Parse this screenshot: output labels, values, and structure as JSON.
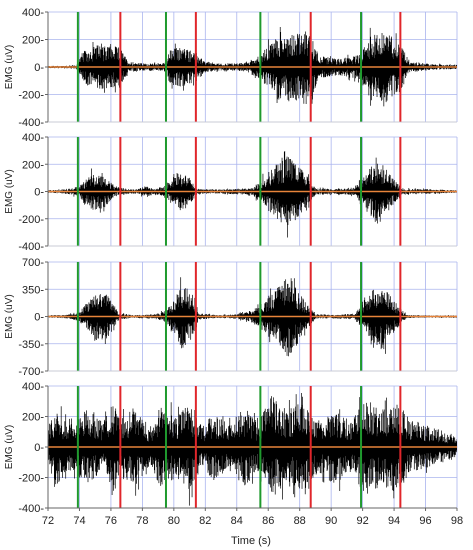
{
  "chart_data": {
    "type": "line",
    "title": "",
    "xlabel": "Time (s)",
    "xlim": [
      72,
      98
    ],
    "x_ticks": [
      72,
      74,
      76,
      78,
      80,
      82,
      84,
      86,
      88,
      90,
      92,
      94,
      96,
      98
    ],
    "grid": true,
    "colors": {
      "signal": "#000000",
      "baseline": "#e8843a",
      "onset_marker": "#1f9a2e",
      "offset_marker": "#e0262b",
      "grid": "#aab4ee",
      "axis": "#666666"
    },
    "onset_markers": [
      73.9,
      79.5,
      85.5,
      91.9
    ],
    "offset_markers": [
      76.6,
      81.4,
      88.7,
      94.4
    ],
    "panels": [
      {
        "ylabel": "EMG (uV)",
        "ylim": [
          -400,
          400
        ],
        "y_ticks": [
          400,
          200,
          0,
          -200,
          -400
        ],
        "envelope": [
          [
            72.0,
            8
          ],
          [
            73.0,
            10
          ],
          [
            73.8,
            12
          ],
          [
            74.2,
            110
          ],
          [
            75.0,
            160
          ],
          [
            75.8,
            165
          ],
          [
            76.6,
            140
          ],
          [
            77.1,
            40
          ],
          [
            78.2,
            25
          ],
          [
            79.4,
            30
          ],
          [
            79.8,
            130
          ],
          [
            80.5,
            150
          ],
          [
            81.4,
            110
          ],
          [
            81.9,
            40
          ],
          [
            83.0,
            25
          ],
          [
            84.5,
            30
          ],
          [
            85.5,
            90
          ],
          [
            86.5,
            220
          ],
          [
            87.5,
            260
          ],
          [
            88.7,
            230
          ],
          [
            89.3,
            80
          ],
          [
            90.5,
            60
          ],
          [
            91.8,
            90
          ],
          [
            92.5,
            230
          ],
          [
            93.5,
            260
          ],
          [
            94.4,
            180
          ],
          [
            95.0,
            40
          ],
          [
            96.5,
            20
          ],
          [
            98.0,
            15
          ]
        ]
      },
      {
        "ylabel": "EMG (uV)",
        "ylim": [
          -400,
          400
        ],
        "y_ticks": [
          400,
          200,
          0,
          -200,
          -400
        ],
        "envelope": [
          [
            72.0,
            10
          ],
          [
            73.0,
            15
          ],
          [
            74.0,
            40
          ],
          [
            74.8,
            140
          ],
          [
            75.6,
            120
          ],
          [
            76.3,
            30
          ],
          [
            77.5,
            15
          ],
          [
            78.2,
            40
          ],
          [
            78.8,
            20
          ],
          [
            79.5,
            40
          ],
          [
            80.2,
            150
          ],
          [
            80.9,
            110
          ],
          [
            81.5,
            20
          ],
          [
            82.5,
            15
          ],
          [
            83.8,
            20
          ],
          [
            85.0,
            25
          ],
          [
            86.0,
            140
          ],
          [
            87.2,
            280
          ],
          [
            88.3,
            140
          ],
          [
            89.0,
            25
          ],
          [
            90.3,
            20
          ],
          [
            91.5,
            30
          ],
          [
            92.3,
            140
          ],
          [
            93.0,
            260
          ],
          [
            93.8,
            120
          ],
          [
            94.5,
            20
          ],
          [
            95.5,
            20
          ],
          [
            96.5,
            15
          ],
          [
            98.0,
            10
          ]
        ]
      },
      {
        "ylabel": "EMG (uV)",
        "ylim": [
          -700,
          700
        ],
        "y_ticks": [
          700,
          350,
          0,
          -350,
          -700
        ],
        "envelope": [
          [
            72.0,
            15
          ],
          [
            73.0,
            20
          ],
          [
            74.0,
            60
          ],
          [
            75.0,
            320
          ],
          [
            75.8,
            280
          ],
          [
            76.5,
            40
          ],
          [
            77.5,
            20
          ],
          [
            78.8,
            30
          ],
          [
            79.6,
            80
          ],
          [
            80.5,
            420
          ],
          [
            81.2,
            300
          ],
          [
            81.6,
            40
          ],
          [
            82.8,
            20
          ],
          [
            84.0,
            30
          ],
          [
            85.0,
            80
          ],
          [
            86.5,
            350
          ],
          [
            87.3,
            560
          ],
          [
            88.3,
            200
          ],
          [
            89.0,
            30
          ],
          [
            90.5,
            25
          ],
          [
            91.5,
            40
          ],
          [
            92.5,
            300
          ],
          [
            93.3,
            450
          ],
          [
            94.2,
            150
          ],
          [
            94.8,
            20
          ],
          [
            96.0,
            15
          ],
          [
            98.0,
            15
          ]
        ]
      },
      {
        "ylabel": "EMG (uV)",
        "ylim": [
          -400,
          400
        ],
        "y_ticks": [
          400,
          200,
          0,
          -200,
          -400
        ],
        "envelope": [
          [
            72.0,
            120
          ],
          [
            72.5,
            250
          ],
          [
            73.5,
            150
          ],
          [
            74.5,
            260
          ],
          [
            75.5,
            160
          ],
          [
            76.2,
            320
          ],
          [
            76.6,
            180
          ],
          [
            77.5,
            260
          ],
          [
            78.5,
            120
          ],
          [
            79.2,
            280
          ],
          [
            80.2,
            200
          ],
          [
            81.0,
            300
          ],
          [
            81.8,
            130
          ],
          [
            82.5,
            220
          ],
          [
            83.5,
            150
          ],
          [
            84.5,
            260
          ],
          [
            85.3,
            160
          ],
          [
            86.2,
            330
          ],
          [
            87.2,
            240
          ],
          [
            88.2,
            300
          ],
          [
            89.2,
            160
          ],
          [
            90.2,
            250
          ],
          [
            91.2,
            170
          ],
          [
            92.2,
            320
          ],
          [
            93.2,
            250
          ],
          [
            94.2,
            300
          ],
          [
            95.0,
            180
          ],
          [
            96.0,
            150
          ],
          [
            97.0,
            110
          ],
          [
            98.0,
            60
          ]
        ]
      }
    ]
  }
}
